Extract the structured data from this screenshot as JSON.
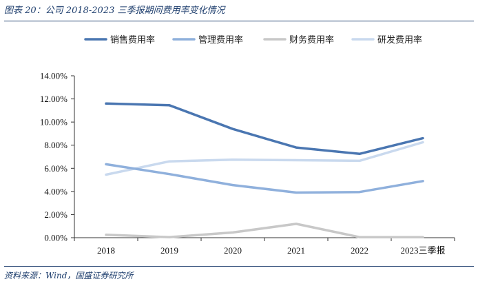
{
  "figure": {
    "title": "图表 20：公司 2018-2023 三季报期间费用率变化情况",
    "source": "资料来源：Wind，国盛证券研究所"
  },
  "chart_data": {
    "type": "line",
    "categories": [
      "2018",
      "2019",
      "2020",
      "2021",
      "2022",
      "2023三季报"
    ],
    "ylim": [
      0,
      14
    ],
    "yticks": [
      "0.00%",
      "2.00%",
      "4.00%",
      "6.00%",
      "8.00%",
      "10.00%",
      "12.00%",
      "14.00%"
    ],
    "grid": false,
    "legend_position": "top",
    "series": [
      {
        "name": "销售费用率",
        "color": "#4a76b1",
        "values": [
          11.6,
          11.45,
          9.4,
          7.8,
          7.25,
          8.6
        ]
      },
      {
        "name": "管理费用率",
        "color": "#8fb0dc",
        "values": [
          6.35,
          5.5,
          4.55,
          3.9,
          3.95,
          4.9
        ]
      },
      {
        "name": "财务费用率",
        "color": "#c8c8c8",
        "values": [
          0.25,
          0.05,
          0.45,
          1.2,
          0.05,
          0.05
        ]
      },
      {
        "name": "研发费用率",
        "color": "#c9d9ee",
        "values": [
          5.45,
          6.6,
          6.75,
          6.7,
          6.65,
          8.25
        ]
      }
    ]
  }
}
